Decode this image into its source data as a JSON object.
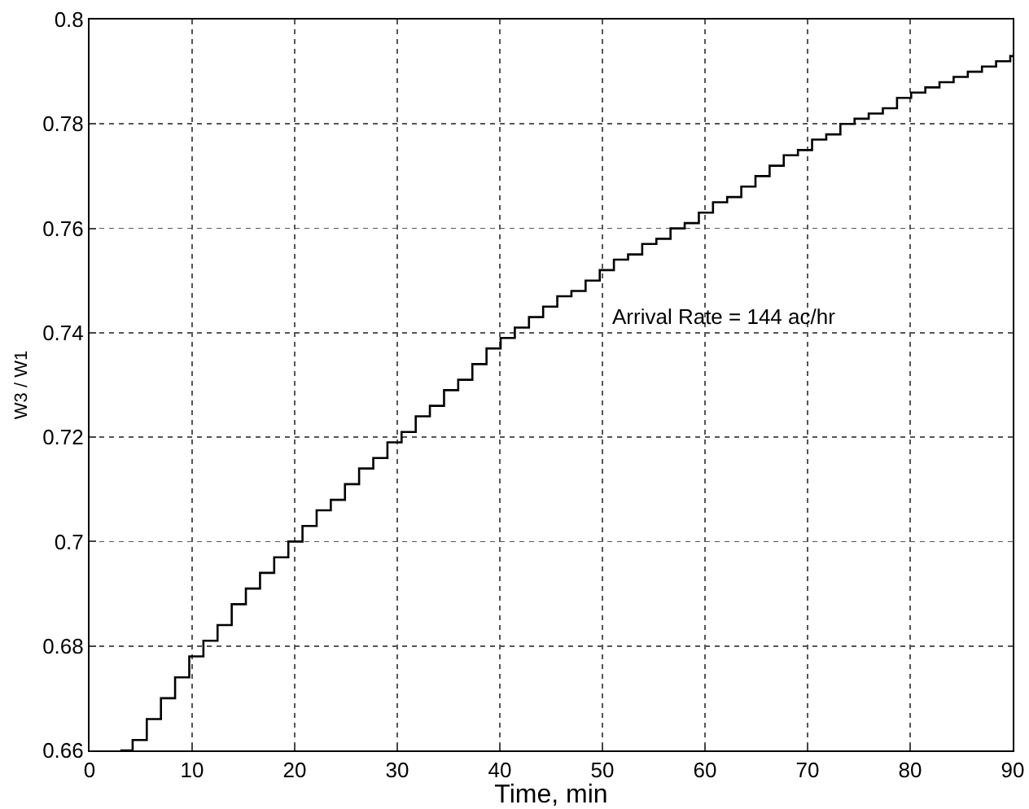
{
  "chart_data": {
    "type": "step",
    "xlabel": "Time, min",
    "ylabel": "W3 / W1",
    "x": [
      3,
      4.2,
      5.58,
      6.96,
      8.34,
      9.72,
      11.1,
      12.48,
      13.86,
      15.24,
      16.62,
      18,
      19.38,
      20.76,
      22.14,
      23.52,
      24.9,
      26.28,
      27.66,
      29.04,
      30.42,
      31.8,
      33.18,
      34.56,
      35.94,
      37.32,
      38.7,
      40.08,
      41.46,
      42.84,
      44.22,
      45.6,
      46.98,
      48.36,
      49.74,
      51.12,
      52.5,
      53.88,
      55.26,
      56.64,
      58.02,
      59.4,
      60.78,
      62.16,
      63.54,
      64.92,
      66.3,
      67.68,
      69.06,
      70.44,
      71.82,
      73.2,
      74.58,
      75.96,
      77.34,
      78.72,
      80.1,
      81.48,
      82.86,
      84.24,
      85.62,
      87,
      88.38,
      89.76,
      90
    ],
    "series": [
      {
        "color": "#000000",
        "values": [
          0.66,
          0.662,
          0.666,
          0.67,
          0.674,
          0.678,
          0.681,
          0.684,
          0.688,
          0.691,
          0.694,
          0.697,
          0.7,
          0.703,
          0.706,
          0.708,
          0.711,
          0.714,
          0.716,
          0.719,
          0.721,
          0.724,
          0.726,
          0.729,
          0.731,
          0.734,
          0.737,
          0.739,
          0.741,
          0.743,
          0.745,
          0.747,
          0.748,
          0.75,
          0.752,
          0.754,
          0.755,
          0.757,
          0.758,
          0.76,
          0.761,
          0.763,
          0.765,
          0.766,
          0.768,
          0.77,
          0.772,
          0.774,
          0.775,
          0.777,
          0.778,
          0.78,
          0.781,
          0.782,
          0.783,
          0.785,
          0.786,
          0.787,
          0.788,
          0.789,
          0.79,
          0.791,
          0.792,
          0.793,
          0.793
        ]
      }
    ],
    "xlim": [
      0,
      90
    ],
    "xticks": [
      0,
      10,
      20,
      30,
      40,
      50,
      60,
      70,
      80,
      90
    ],
    "ylim": [
      0.66,
      0.8
    ],
    "yticks": [
      0.66,
      0.68,
      0.7,
      0.72,
      0.74,
      0.76,
      0.78,
      0.8
    ],
    "grid": true,
    "line_style": "solid",
    "marker": "none",
    "annotations": [
      "Arrival Rate = 144 ac/hr"
    ]
  }
}
